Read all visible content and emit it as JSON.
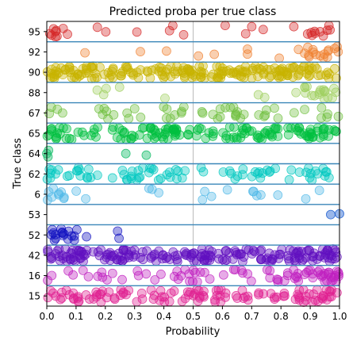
{
  "chart_data": {
    "type": "scatter",
    "title": "Predicted proba per true class",
    "xlabel": "Probability",
    "ylabel": "True class",
    "xlim": [
      0.0,
      1.0
    ],
    "xticks": [
      "0.0",
      "0.1",
      "0.2",
      "0.3",
      "0.4",
      "0.5",
      "0.6",
      "0.7",
      "0.8",
      "0.9",
      "1.0"
    ],
    "categories": [
      "95",
      "92",
      "90",
      "88",
      "67",
      "65",
      "64",
      "62",
      "6",
      "53",
      "52",
      "42",
      "16",
      "15"
    ],
    "grid": "vertical at 0.5",
    "series": [
      {
        "class": "95",
        "color": "#d62728",
        "approx_points": 30,
        "density": "clustered near 0.0 and 0.9-1.0, sparse middle"
      },
      {
        "class": "92",
        "color": "#f08030",
        "approx_points": 25,
        "density": "sparse, clustered near 0.9-1.0"
      },
      {
        "class": "90",
        "color": "#c8b400",
        "approx_points": 200,
        "density": "dense across full range"
      },
      {
        "class": "88",
        "color": "#a0d060",
        "approx_points": 25,
        "density": "sparse, clustered near 0.9-1.0"
      },
      {
        "class": "67",
        "color": "#70c040",
        "approx_points": 50,
        "density": "moderate across range"
      },
      {
        "class": "65",
        "color": "#00c040",
        "approx_points": 150,
        "density": "dense across full range"
      },
      {
        "class": "64",
        "color": "#20c070",
        "approx_points": 5,
        "density": "few near 0.0 and 0.25-0.35"
      },
      {
        "class": "62",
        "color": "#00c8c0",
        "approx_points": 80,
        "density": "moderate across range"
      },
      {
        "class": "6",
        "color": "#50b8e8",
        "approx_points": 25,
        "density": "clustered near 0.0, sparse elsewhere"
      },
      {
        "class": "53",
        "color": "#2060d0",
        "approx_points": 2,
        "density": "two points near 0.97-1.0"
      },
      {
        "class": "52",
        "color": "#1010c0",
        "approx_points": 20,
        "density": "clustered near 0.0-0.1"
      },
      {
        "class": "42",
        "color": "#6010c0",
        "approx_points": 200,
        "density": "dense across full range"
      },
      {
        "class": "16",
        "color": "#c020c0",
        "approx_points": 80,
        "density": "moderate across range, denser near 1.0"
      },
      {
        "class": "15",
        "color": "#e02090",
        "approx_points": 120,
        "density": "dense across full range"
      }
    ]
  }
}
